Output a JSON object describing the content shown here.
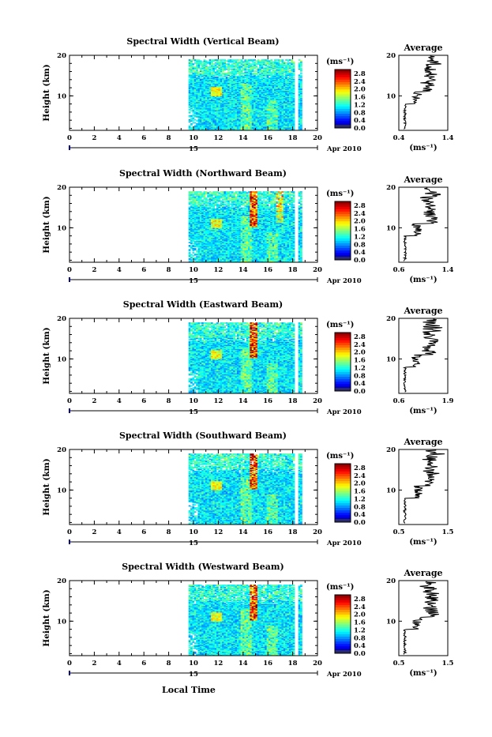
{
  "figure": {
    "bottom_xlabel": "Local Time",
    "day_label": "15",
    "month_year_label": "Apr 2010"
  },
  "chart_data": [
    {
      "type": "heatmap",
      "title": "Spectral Width (Vertical Beam)",
      "ylabel": "Height (km)",
      "x_ticks": [
        "0",
        "2",
        "4",
        "6",
        "8",
        "10",
        "12",
        "14",
        "16",
        "18",
        "20"
      ],
      "xlim": [
        0,
        20
      ],
      "y_ticks": [
        "20",
        "10"
      ],
      "ylim": [
        1.5,
        20
      ],
      "data_x_range": [
        9.6,
        18.6
      ],
      "colorbar": {
        "unit": "(ms⁻¹)",
        "ticks": [
          "2.8",
          "2.4",
          "2.0",
          "1.6",
          "1.2",
          "0.8",
          "0.4",
          "0.0"
        ],
        "range": [
          0,
          3.0
        ]
      },
      "profile": {
        "title": "Average",
        "xlabel": "(ms⁻¹)",
        "x_ticks": [
          "0.4",
          "1.4"
        ],
        "xlim": [
          0.4,
          1.4
        ],
        "y_ticks": [
          "20",
          "10"
        ]
      }
    },
    {
      "type": "heatmap",
      "title": "Spectral Width (Northward Beam)",
      "ylabel": "Height (km)",
      "x_ticks": [
        "0",
        "2",
        "4",
        "6",
        "8",
        "10",
        "12",
        "14",
        "16",
        "18",
        "20"
      ],
      "xlim": [
        0,
        20
      ],
      "y_ticks": [
        "20",
        "10"
      ],
      "ylim": [
        1.5,
        20
      ],
      "data_x_range": [
        9.6,
        18.6
      ],
      "colorbar": {
        "unit": "(ms⁻¹)",
        "ticks": [
          "2.8",
          "2.4",
          "2.0",
          "1.6",
          "1.2",
          "0.8",
          "0.4",
          "0.0"
        ],
        "range": [
          0,
          3.0
        ]
      },
      "profile": {
        "title": "Average",
        "xlabel": "(ms⁻¹)",
        "x_ticks": [
          "0.6",
          "1.4"
        ],
        "xlim": [
          0.6,
          1.4
        ],
        "y_ticks": [
          "20",
          "10"
        ]
      }
    },
    {
      "type": "heatmap",
      "title": "Spectral Width (Eastward Beam)",
      "ylabel": "Height (km)",
      "x_ticks": [
        "0",
        "2",
        "4",
        "6",
        "8",
        "10",
        "12",
        "14",
        "16",
        "18",
        "20"
      ],
      "xlim": [
        0,
        20
      ],
      "y_ticks": [
        "20",
        "10"
      ],
      "ylim": [
        1.5,
        20
      ],
      "data_x_range": [
        9.6,
        18.6
      ],
      "colorbar": {
        "unit": "(ms⁻¹)",
        "ticks": [
          "2.8",
          "2.4",
          "2.0",
          "1.6",
          "1.2",
          "0.8",
          "0.4",
          "0.0"
        ],
        "range": [
          0,
          3.0
        ]
      },
      "profile": {
        "title": "Average",
        "xlabel": "(ms⁻¹)",
        "x_ticks": [
          "0.6",
          "1.9"
        ],
        "xlim": [
          0.6,
          1.9
        ],
        "y_ticks": [
          "20",
          "10"
        ]
      }
    },
    {
      "type": "heatmap",
      "title": "Spectral Width (Southward Beam)",
      "ylabel": "Height (km)",
      "x_ticks": [
        "0",
        "2",
        "4",
        "6",
        "8",
        "10",
        "12",
        "14",
        "16",
        "18",
        "20"
      ],
      "xlim": [
        0,
        20
      ],
      "y_ticks": [
        "20",
        "10"
      ],
      "ylim": [
        1.5,
        20
      ],
      "data_x_range": [
        9.6,
        18.6
      ],
      "colorbar": {
        "unit": "(ms⁻¹)",
        "ticks": [
          "2.8",
          "2.4",
          "2.0",
          "1.6",
          "1.2",
          "0.8",
          "0.4",
          "0.0"
        ],
        "range": [
          0,
          3.0
        ]
      },
      "profile": {
        "title": "Average",
        "xlabel": "(ms⁻¹)",
        "x_ticks": [
          "0.5",
          "1.5"
        ],
        "xlim": [
          0.5,
          1.5
        ],
        "y_ticks": [
          "20",
          "10"
        ]
      }
    },
    {
      "type": "heatmap",
      "title": "Spectral Width (Westward Beam)",
      "ylabel": "Height (km)",
      "x_ticks": [
        "0",
        "2",
        "4",
        "6",
        "8",
        "10",
        "12",
        "14",
        "16",
        "18",
        "20"
      ],
      "xlim": [
        0,
        20
      ],
      "y_ticks": [
        "20",
        "10"
      ],
      "ylim": [
        1.5,
        20
      ],
      "data_x_range": [
        9.6,
        18.6
      ],
      "colorbar": {
        "unit": "(ms⁻¹)",
        "ticks": [
          "2.8",
          "2.4",
          "2.0",
          "1.6",
          "1.2",
          "0.8",
          "0.4",
          "0.0"
        ],
        "range": [
          0,
          3.0
        ]
      },
      "profile": {
        "title": "Average",
        "xlabel": "(ms⁻¹)",
        "x_ticks": [
          "0.5",
          "1.5"
        ],
        "xlim": [
          0.5,
          1.5
        ],
        "y_ticks": [
          "20",
          "10"
        ]
      }
    }
  ]
}
